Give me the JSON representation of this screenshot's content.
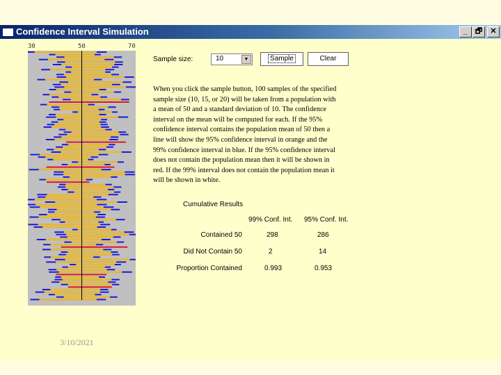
{
  "window": {
    "title": "Confidence Interval Simulation",
    "buttons": [
      "_",
      "🗗",
      "✕"
    ]
  },
  "axis": {
    "ticks": [
      "30",
      "50",
      "70"
    ],
    "min": 30,
    "max": 70,
    "mean": 50
  },
  "controls": {
    "sample_size_label": "Sample size:",
    "sample_size_value": "10",
    "sample_button": "Sample",
    "clear_button": "Clear"
  },
  "description": "When you click the sample button, 100 samples of the specified sample size (10, 15, or 20) will be taken from a population with a mean of 50 and a standard deviation of 10. The confidence interval on the mean will be computed for each. If the 95% confidence interval contains the population mean of 50 then a line will show the 95% confidence interval in orange and the 99% confidence interval in blue. If the 95% confidence interval does not contain the population mean then it will be shown in red. If the 99% interval does not contain the population mean it will be shown in white.",
  "results": {
    "title": "Cumulative Results",
    "headers": [
      "99% Conf. Int.",
      "95% Conf. Int."
    ],
    "rows": [
      {
        "label": "Contained 50",
        "v99": "298",
        "v95": "286"
      },
      {
        "label": "Did Not Contain 50",
        "v99": "2",
        "v95": "14"
      },
      {
        "label": "Proportion Contained",
        "v99": "0.993",
        "v95": "0.953"
      }
    ]
  },
  "colors": {
    "ci95": "#e8b830",
    "ci99": "#1a1ad8",
    "miss": "#e01818",
    "background": "#c0c0c0"
  },
  "footer": {
    "date": "3/10/2021"
  }
}
